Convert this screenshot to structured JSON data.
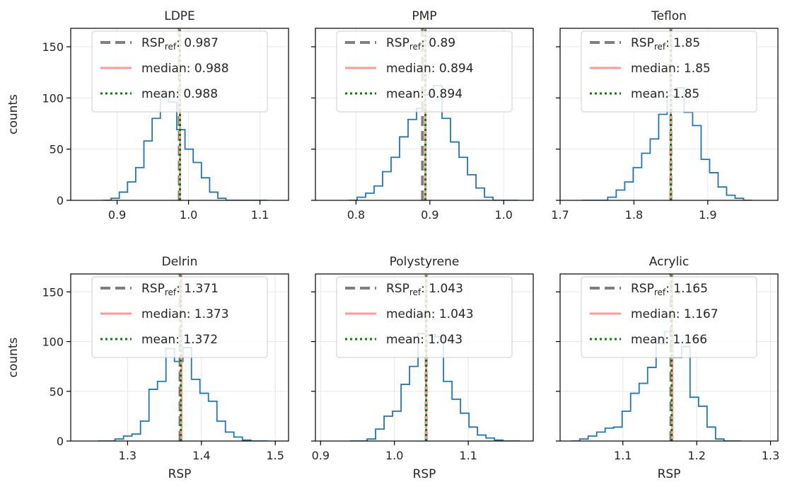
{
  "chart_data": [
    {
      "type": "histogram",
      "title": "LDPE",
      "ylabel": "counts",
      "xlabel": "",
      "xlim": [
        0.835,
        1.14
      ],
      "ylim": [
        0,
        168
      ],
      "xticks": [
        0.9,
        1.0,
        1.1
      ],
      "yticks": [
        0,
        50,
        100,
        150
      ],
      "grid": true,
      "legend_position": "top-center",
      "bins": [
        0.88,
        0.8915,
        0.903,
        0.9145,
        0.926,
        0.9375,
        0.949,
        0.9605,
        0.972,
        0.9835,
        0.995,
        1.0065,
        1.018,
        1.0295,
        1.041,
        1.0525,
        1.064,
        1.0755,
        1.087,
        1.0985,
        1.11
      ],
      "counts": [
        0,
        2,
        8,
        18,
        32,
        58,
        80,
        106,
        96,
        69,
        50,
        37,
        22,
        8,
        2,
        0,
        0,
        0,
        0,
        0
      ],
      "rsp_ref": 0.987,
      "median": 0.988,
      "mean": 0.988,
      "legend": {
        "ref_prefix": "RSP",
        "ref_sub": "ref",
        "ref_suffix": ": 0.987",
        "median_label": "median: 0.988",
        "mean_label": "mean: 0.988"
      }
    },
    {
      "type": "histogram",
      "title": "PMP",
      "ylabel": "",
      "xlabel": "",
      "xlim": [
        0.745,
        1.04
      ],
      "ylim": [
        0,
        168
      ],
      "xticks": [
        0.8,
        0.9,
        1.0
      ],
      "yticks": [
        0,
        50,
        100,
        150
      ],
      "grid": true,
      "legend_position": "top-center",
      "bins": [
        0.79,
        0.8015,
        0.813,
        0.8245,
        0.836,
        0.8475,
        0.859,
        0.8705,
        0.882,
        0.8935,
        0.905,
        0.9165,
        0.928,
        0.9395,
        0.951,
        0.9625,
        0.974,
        0.9855,
        0.997,
        1.0085,
        1.02
      ],
      "counts": [
        0,
        3,
        7,
        14,
        28,
        42,
        62,
        79,
        90,
        103,
        112,
        80,
        57,
        42,
        25,
        12,
        3,
        0,
        0,
        0
      ],
      "rsp_ref": 0.89,
      "median": 0.894,
      "mean": 0.894,
      "legend": {
        "ref_prefix": "RSP",
        "ref_sub": "ref",
        "ref_suffix": ": 0.89",
        "median_label": "median: 0.894",
        "mean_label": "mean: 0.894"
      }
    },
    {
      "type": "histogram",
      "title": "Teflon",
      "ylabel": "",
      "xlabel": "",
      "xlim": [
        1.7,
        1.995
      ],
      "ylim": [
        0,
        168
      ],
      "xticks": [
        1.7,
        1.8,
        1.9
      ],
      "yticks": [
        0,
        50,
        100,
        150
      ],
      "grid": true,
      "legend_position": "top-center",
      "bins": [
        1.73,
        1.7415,
        1.753,
        1.7645,
        1.776,
        1.7875,
        1.799,
        1.8105,
        1.822,
        1.8335,
        1.845,
        1.8565,
        1.868,
        1.8795,
        1.891,
        1.9025,
        1.914,
        1.9255,
        1.937,
        1.9485,
        1.96
      ],
      "counts": [
        0,
        0,
        0,
        3,
        10,
        18,
        32,
        46,
        60,
        84,
        102,
        110,
        86,
        73,
        40,
        27,
        13,
        5,
        2,
        0
      ],
      "rsp_ref": 1.85,
      "median": 1.85,
      "mean": 1.85,
      "legend": {
        "ref_prefix": "RSP",
        "ref_sub": "ref",
        "ref_suffix": ": 1.85",
        "median_label": "median: 1.85",
        "mean_label": "mean: 1.85"
      }
    },
    {
      "type": "histogram",
      "title": "Delrin",
      "ylabel": "counts",
      "xlabel": "RSP",
      "xlim": [
        1.223,
        1.518
      ],
      "ylim": [
        0,
        168
      ],
      "xticks": [
        1.3,
        1.4,
        1.5
      ],
      "yticks": [
        0,
        50,
        100,
        150
      ],
      "grid": true,
      "legend_position": "top-center",
      "bins": [
        1.26,
        1.2715,
        1.283,
        1.2945,
        1.306,
        1.3175,
        1.329,
        1.3405,
        1.352,
        1.3635,
        1.375,
        1.3865,
        1.398,
        1.4095,
        1.421,
        1.4325,
        1.444,
        1.4555,
        1.467,
        1.4785,
        1.49
      ],
      "counts": [
        0,
        0,
        2,
        5,
        7,
        20,
        52,
        60,
        93,
        80,
        94,
        62,
        48,
        40,
        20,
        9,
        4,
        1,
        0,
        0
      ],
      "rsp_ref": 1.371,
      "median": 1.373,
      "mean": 1.372,
      "legend": {
        "ref_prefix": "RSP",
        "ref_sub": "ref",
        "ref_suffix": ": 1.371",
        "median_label": "median: 1.373",
        "mean_label": "mean: 1.372"
      }
    },
    {
      "type": "histogram",
      "title": "Polystyrene",
      "ylabel": "",
      "xlabel": "RSP",
      "xlim": [
        0.893,
        1.188
      ],
      "ylim": [
        0,
        168
      ],
      "xticks": [
        0.9,
        1.0,
        1.1
      ],
      "yticks": [
        0,
        50,
        100,
        150
      ],
      "grid": true,
      "legend_position": "top-center",
      "bins": [
        0.94,
        0.9515,
        0.963,
        0.9745,
        0.986,
        0.9975,
        1.009,
        1.0205,
        1.032,
        1.0435,
        1.055,
        1.0665,
        1.078,
        1.0895,
        1.101,
        1.1125,
        1.124,
        1.1355,
        1.147,
        1.1585,
        1.17
      ],
      "counts": [
        0,
        0,
        2,
        12,
        25,
        30,
        57,
        75,
        108,
        107,
        105,
        60,
        42,
        28,
        14,
        6,
        3,
        1,
        0,
        0
      ],
      "rsp_ref": 1.043,
      "median": 1.043,
      "mean": 1.043,
      "legend": {
        "ref_prefix": "RSP",
        "ref_sub": "ref",
        "ref_suffix": ": 1.043",
        "median_label": "median: 1.043",
        "mean_label": "mean: 1.043"
      }
    },
    {
      "type": "histogram",
      "title": "Acrylic",
      "ylabel": "",
      "xlabel": "RSP",
      "xlim": [
        1.015,
        1.31
      ],
      "ylim": [
        0,
        168
      ],
      "xticks": [
        1.1,
        1.2,
        1.3
      ],
      "yticks": [
        0,
        50,
        100,
        150
      ],
      "grid": true,
      "legend_position": "top-center",
      "bins": [
        1.03,
        1.0415,
        1.053,
        1.0645,
        1.076,
        1.0875,
        1.099,
        1.1105,
        1.122,
        1.1335,
        1.145,
        1.1565,
        1.168,
        1.1795,
        1.191,
        1.2025,
        1.214,
        1.2255,
        1.237,
        1.2485,
        1.26
      ],
      "counts": [
        0,
        2,
        5,
        9,
        13,
        14,
        30,
        48,
        58,
        74,
        98,
        110,
        84,
        95,
        44,
        35,
        14,
        2,
        0,
        0
      ],
      "rsp_ref": 1.165,
      "median": 1.167,
      "mean": 1.166,
      "legend": {
        "ref_prefix": "RSP",
        "ref_sub": "ref",
        "ref_suffix": ": 1.165",
        "median_label": "median: 1.167",
        "mean_label": "mean: 1.166"
      }
    }
  ],
  "colors": {
    "histogram": "#1f77b4",
    "rsp_ref": "#808080",
    "median": "#ff9896",
    "mean": "#008000"
  }
}
